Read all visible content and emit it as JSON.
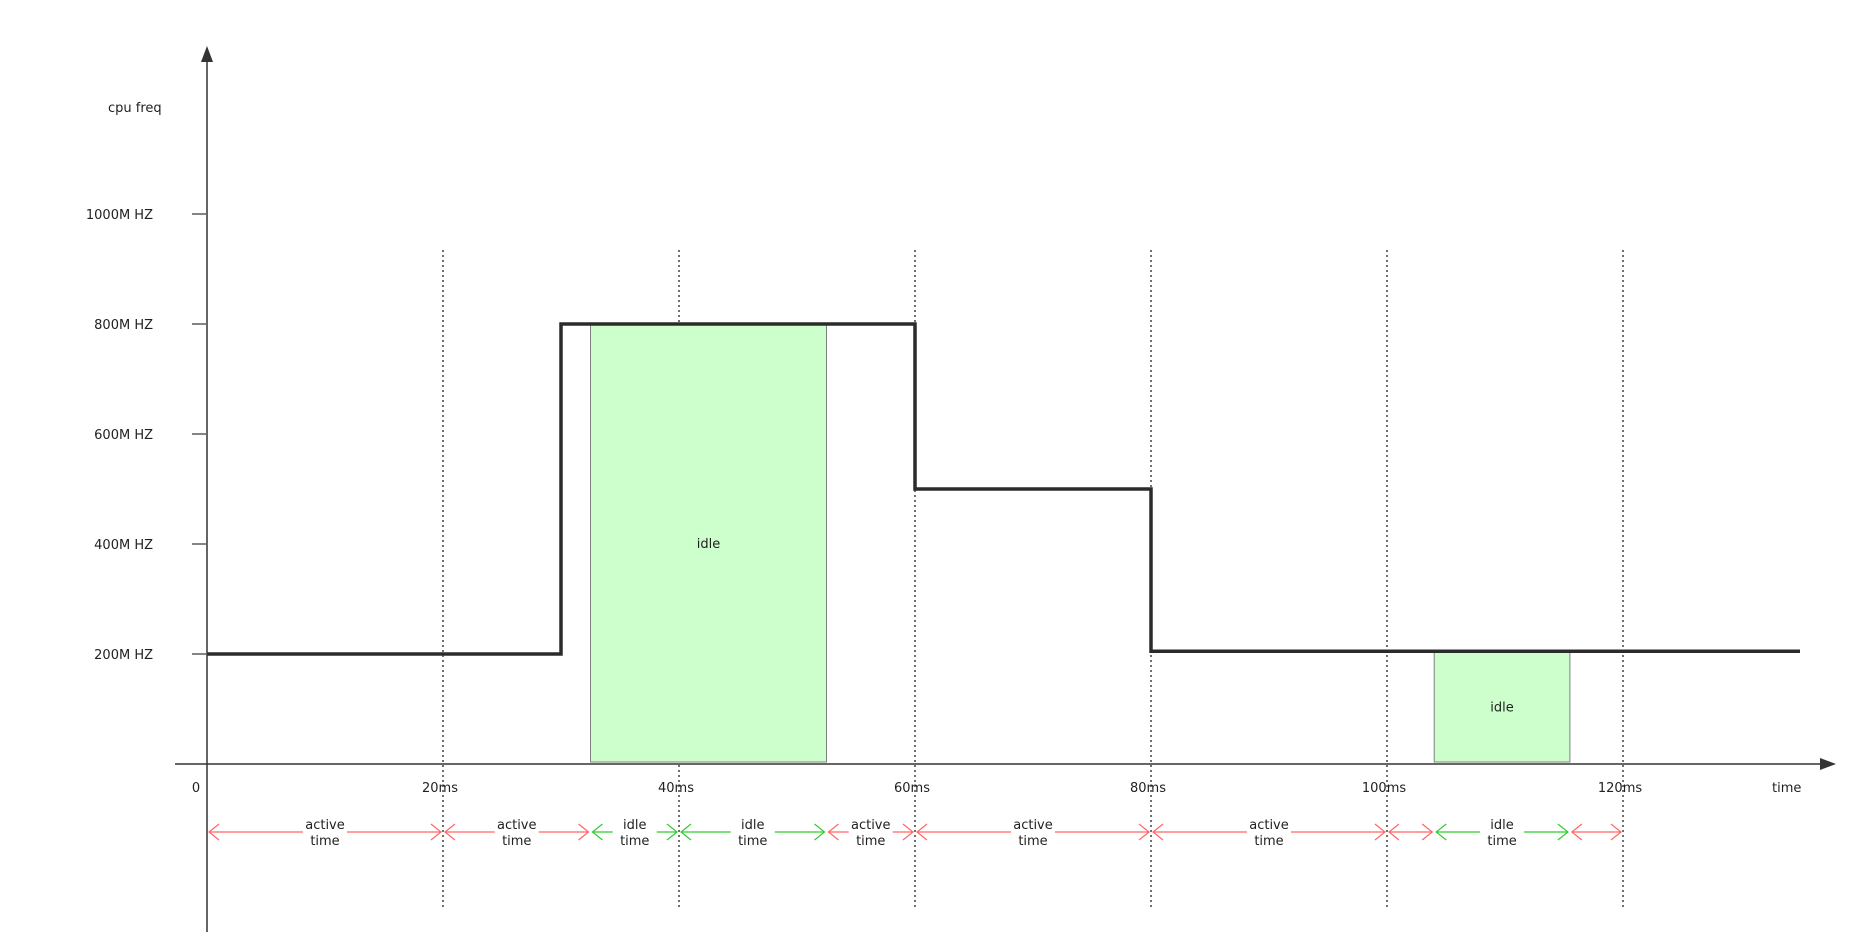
{
  "diagram": {
    "y_axis_label": "cpu freq",
    "x_axis_label": "time",
    "y_ticks": [
      {
        "label": "1000M HZ",
        "value": 1000
      },
      {
        "label": "800M HZ",
        "value": 800
      },
      {
        "label": "600M HZ",
        "value": 600
      },
      {
        "label": "400M HZ",
        "value": 400
      },
      {
        "label": "200M HZ",
        "value": 200
      }
    ],
    "x_ticks": [
      {
        "label": "0",
        "value": 0
      },
      {
        "label": "20ms",
        "value": 20
      },
      {
        "label": "40ms",
        "value": 40
      },
      {
        "label": "60ms",
        "value": 60
      },
      {
        "label": "80ms",
        "value": 80
      },
      {
        "label": "100ms",
        "value": 100
      },
      {
        "label": "120ms",
        "value": 120
      }
    ],
    "frequency_steps": [
      {
        "t_start": 0,
        "t_end": 30,
        "freq": 200
      },
      {
        "t_start": 30,
        "t_end": 60,
        "freq": 800
      },
      {
        "t_start": 60,
        "t_end": 80,
        "freq": 500
      },
      {
        "t_start": 80,
        "t_end": 135,
        "freq": 205
      }
    ],
    "idle_regions": [
      {
        "label": "idle",
        "t_start": 32.5,
        "t_end": 52.5,
        "freq_top": 800
      },
      {
        "label": "idle",
        "t_start": 104,
        "t_end": 115.5,
        "freq_top": 205
      }
    ],
    "time_segments": [
      {
        "kind": "active",
        "line1": "active",
        "line2": "time",
        "t_start": 0,
        "t_end": 20
      },
      {
        "kind": "active",
        "line1": "active",
        "line2": "time",
        "t_start": 20,
        "t_end": 32.5
      },
      {
        "kind": "idle",
        "line1": "idle",
        "line2": "time",
        "t_start": 32.5,
        "t_end": 40
      },
      {
        "kind": "idle",
        "line1": "idle",
        "line2": "time",
        "t_start": 40,
        "t_end": 52.5
      },
      {
        "kind": "active",
        "line1": "active",
        "line2": "time",
        "t_start": 52.5,
        "t_end": 60
      },
      {
        "kind": "active",
        "line1": "active",
        "line2": "time",
        "t_start": 60,
        "t_end": 80
      },
      {
        "kind": "active",
        "line1": "active",
        "line2": "time",
        "t_start": 80,
        "t_end": 100
      },
      {
        "kind": "active",
        "line1": "",
        "line2": "",
        "t_start": 100,
        "t_end": 104
      },
      {
        "kind": "idle",
        "line1": "idle",
        "line2": "time",
        "t_start": 104,
        "t_end": 115.5
      },
      {
        "kind": "active",
        "line1": "",
        "line2": "",
        "t_start": 115.5,
        "t_end": 120
      }
    ],
    "colors": {
      "axis": "#333333",
      "step_line": "#2b2b2b",
      "idle_fill": "#ccffcc",
      "idle_stroke": "#808080",
      "active_arrow": "#ff6666",
      "idle_arrow": "#33cc33",
      "gridline": "#333333"
    }
  }
}
